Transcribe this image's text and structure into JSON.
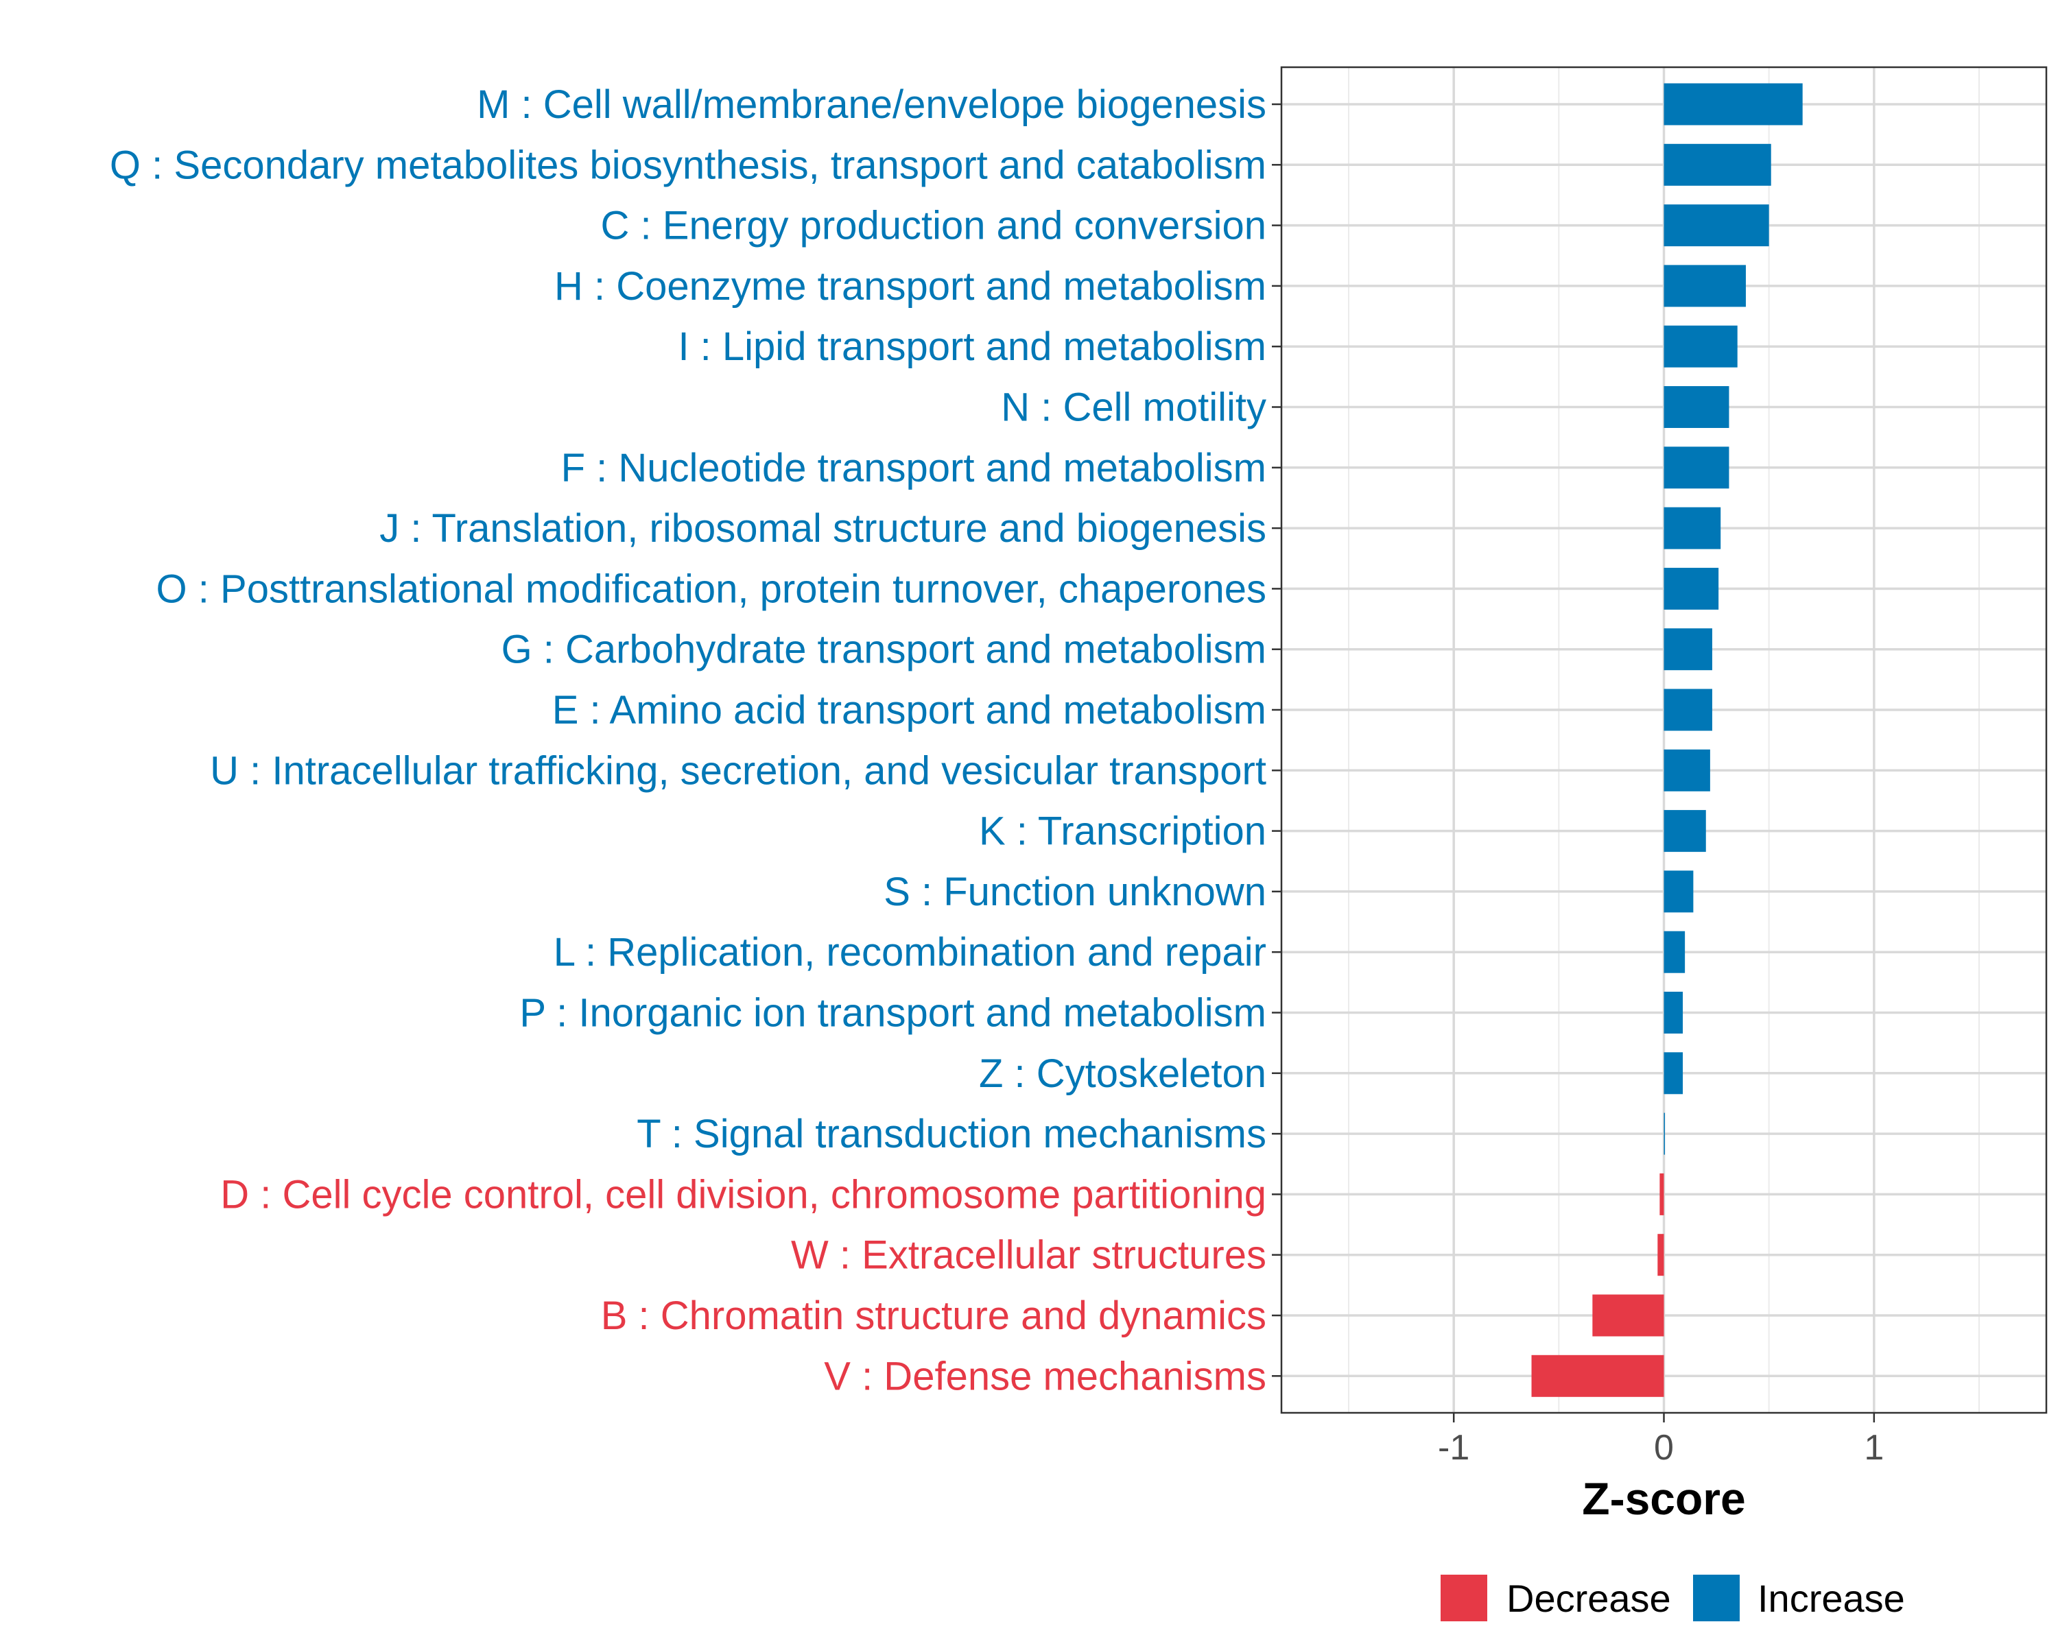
{
  "chart_data": {
    "type": "bar",
    "orientation": "horizontal",
    "xlabel": "Z-score",
    "ylabel": "",
    "xlim": [
      -1.82,
      1.82
    ],
    "xticks": [
      "-1",
      "0",
      "1"
    ],
    "xtick_values": [
      -1,
      0,
      1
    ],
    "grid": true,
    "legend_position": "bottom",
    "legend": [
      {
        "name": "Decrease",
        "color": "#E63946"
      },
      {
        "name": "Increase",
        "color": "#0077B6"
      }
    ],
    "categories": [
      "M : Cell wall/membrane/envelope biogenesis",
      "Q : Secondary metabolites biosynthesis, transport and catabolism",
      "C : Energy production and conversion",
      "H : Coenzyme transport and metabolism",
      "I : Lipid transport and metabolism",
      "N : Cell motility",
      "F : Nucleotide transport and metabolism",
      "J : Translation, ribosomal structure and biogenesis",
      "O : Posttranslational modification, protein turnover, chaperones",
      "G : Carbohydrate transport and metabolism",
      "E : Amino acid transport and metabolism",
      "U : Intracellular trafficking, secretion, and vesicular transport",
      "K : Transcription",
      "S : Function unknown",
      "L : Replication, recombination and repair",
      "P : Inorganic ion transport and metabolism",
      "Z : Cytoskeleton",
      "T : Signal transduction mechanisms",
      "D : Cell cycle control, cell division, chromosome partitioning",
      "W : Extracellular structures",
      "B : Chromatin structure and dynamics",
      "V : Defense mechanisms"
    ],
    "values": [
      0.66,
      0.51,
      0.5,
      0.39,
      0.35,
      0.31,
      0.31,
      0.27,
      0.26,
      0.23,
      0.23,
      0.22,
      0.2,
      0.14,
      0.1,
      0.09,
      0.09,
      0.005,
      -0.02,
      -0.03,
      -0.34,
      -0.63
    ]
  }
}
